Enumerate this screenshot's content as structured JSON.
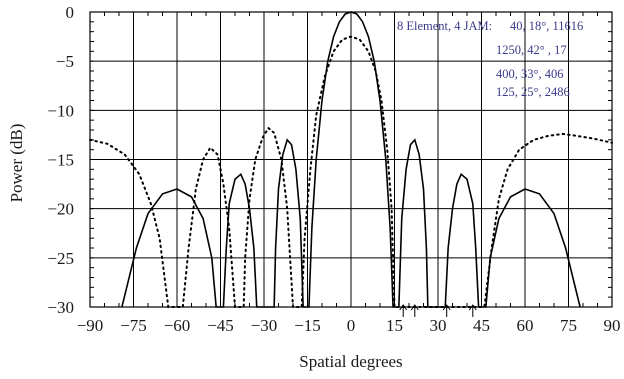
{
  "chart_data": {
    "type": "line",
    "xlabel": "Spatial degrees",
    "ylabel": "Power (dB)",
    "xlim": [
      -90,
      90
    ],
    "ylim": [
      -30,
      0
    ],
    "xticks": [
      -90,
      -75,
      -60,
      -45,
      -30,
      -15,
      0,
      15,
      30,
      45,
      60,
      75,
      90
    ],
    "yticks": [
      0,
      -5,
      -10,
      -15,
      -20,
      -25,
      -30
    ],
    "xtick_labels": [
      "−90",
      "−75",
      "−60",
      "−45",
      "−30",
      "−15",
      "0",
      "15",
      "30",
      "45",
      "60",
      "75",
      "90"
    ],
    "ytick_labels": [
      "0",
      "−5",
      "−10",
      "−15",
      "−20",
      "−25",
      "−30"
    ],
    "grid": true,
    "series": [
      {
        "style": "solid",
        "points": [
          [
            -79,
            -30
          ],
          [
            -74,
            -24
          ],
          [
            -70,
            -20.5
          ],
          [
            -65,
            -18.5
          ],
          [
            -60,
            -18
          ],
          [
            -55,
            -18.8
          ],
          [
            -51,
            -21
          ],
          [
            -48,
            -25
          ],
          [
            -46.5,
            -30
          ],
          [
            -44,
            -30
          ],
          [
            -43,
            -24
          ],
          [
            -42,
            -19.5
          ],
          [
            -40,
            -17
          ],
          [
            -38,
            -16.5
          ],
          [
            -36.5,
            -17.5
          ],
          [
            -35,
            -20
          ],
          [
            -33.5,
            -24
          ],
          [
            -32.5,
            -30
          ],
          [
            -26.5,
            -30
          ],
          [
            -26,
            -24
          ],
          [
            -25,
            -18
          ],
          [
            -23.5,
            -14.5
          ],
          [
            -22,
            -13
          ],
          [
            -20.5,
            -13.5
          ],
          [
            -19,
            -16
          ],
          [
            -17.5,
            -21
          ],
          [
            -16.5,
            -30
          ],
          [
            -14.5,
            -30
          ],
          [
            -13.5,
            -22
          ],
          [
            -12,
            -15
          ],
          [
            -10,
            -9
          ],
          [
            -8,
            -5
          ],
          [
            -6,
            -2.5
          ],
          [
            -4,
            -1
          ],
          [
            -2,
            -0.2
          ],
          [
            0,
            0
          ],
          [
            2,
            -0.2
          ],
          [
            4,
            -1
          ],
          [
            6,
            -2.5
          ],
          [
            8,
            -5
          ],
          [
            10,
            -9
          ],
          [
            12,
            -15
          ],
          [
            13.5,
            -22
          ],
          [
            14.5,
            -30
          ],
          [
            16.5,
            -30
          ],
          [
            17.5,
            -21
          ],
          [
            19,
            -16
          ],
          [
            20.5,
            -13.5
          ],
          [
            22,
            -13
          ],
          [
            23.5,
            -14.5
          ],
          [
            25,
            -18
          ],
          [
            26,
            -24
          ],
          [
            26.5,
            -30
          ],
          [
            32.5,
            -30
          ],
          [
            33.5,
            -24
          ],
          [
            35,
            -20
          ],
          [
            36.5,
            -17.5
          ],
          [
            38,
            -16.5
          ],
          [
            40,
            -17
          ],
          [
            42,
            -19.5
          ],
          [
            43,
            -24
          ],
          [
            44,
            -30
          ],
          [
            46.5,
            -30
          ],
          [
            48,
            -25
          ],
          [
            51,
            -21
          ],
          [
            55,
            -18.8
          ],
          [
            60,
            -18
          ],
          [
            65,
            -18.5
          ],
          [
            70,
            -20.5
          ],
          [
            74,
            -24
          ],
          [
            79,
            -30
          ]
        ]
      },
      {
        "style": "dotted",
        "points": [
          [
            -90,
            -13
          ],
          [
            -84,
            -13.4
          ],
          [
            -78,
            -14.5
          ],
          [
            -73,
            -16.5
          ],
          [
            -69,
            -19.5
          ],
          [
            -66,
            -23
          ],
          [
            -63,
            -30
          ],
          [
            -58,
            -30
          ],
          [
            -56,
            -24
          ],
          [
            -53.5,
            -18
          ],
          [
            -51,
            -15
          ],
          [
            -48.5,
            -13.8
          ],
          [
            -46,
            -14.5
          ],
          [
            -44,
            -17.5
          ],
          [
            -42,
            -22
          ],
          [
            -40,
            -30
          ],
          [
            -37,
            -30
          ],
          [
            -36.5,
            -25
          ],
          [
            -35,
            -19
          ],
          [
            -33,
            -15
          ],
          [
            -30.5,
            -12.8
          ],
          [
            -28.5,
            -11.8
          ],
          [
            -26.5,
            -12.3
          ],
          [
            -24,
            -15
          ],
          [
            -22,
            -20
          ],
          [
            -20,
            -30
          ],
          [
            -17,
            -30
          ],
          [
            -16,
            -23
          ],
          [
            -14,
            -16
          ],
          [
            -12,
            -10.5
          ],
          [
            -9,
            -6.5
          ],
          [
            -6,
            -4
          ],
          [
            -3,
            -2.8
          ],
          [
            0,
            -2.5
          ],
          [
            3,
            -2.8
          ],
          [
            6,
            -4
          ],
          [
            8.5,
            -6
          ],
          [
            10.5,
            -9
          ],
          [
            12.5,
            -14
          ],
          [
            14,
            -20
          ],
          [
            15,
            -30
          ],
          [
            46,
            -30
          ],
          [
            48.5,
            -24
          ],
          [
            51,
            -19
          ],
          [
            54,
            -16
          ],
          [
            58,
            -14
          ],
          [
            63,
            -13
          ],
          [
            68,
            -12.6
          ],
          [
            73,
            -12.4
          ],
          [
            78,
            -12.6
          ],
          [
            84,
            -12.9
          ],
          [
            90,
            -13.3
          ]
        ]
      }
    ],
    "annotation": {
      "legend": "8 Element, 4 JAM:",
      "lines": [
        "40, 18°, 11616",
        "1250, 42° , 17",
        "400, 33°, 406",
        "125, 25°, 2486"
      ]
    },
    "arrow_markers": [
      18,
      22,
      33,
      42
    ]
  }
}
